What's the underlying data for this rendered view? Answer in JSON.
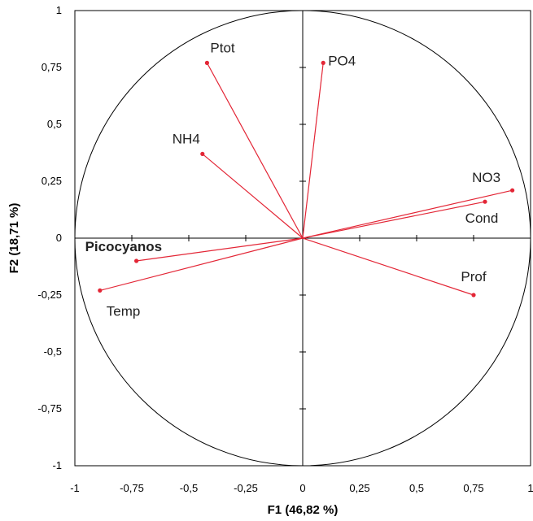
{
  "chart_data": {
    "type": "scatter",
    "subtype": "correlation-circle",
    "title": "",
    "xlabel": "F1 (46,82 %)",
    "ylabel": "F2 (18,71 %)",
    "xlim": [
      -1,
      1
    ],
    "ylim": [
      -1,
      1
    ],
    "x_ticks": [
      "-1",
      "-0,75",
      "-0,5",
      "-0,25",
      "0",
      "0,25",
      "0,5",
      "0,75",
      "1"
    ],
    "y_ticks": [
      "-1",
      "-0,75",
      "-0,5",
      "-0,25",
      "0",
      "0,25",
      "0,5",
      "0,75",
      "1"
    ],
    "grid": false,
    "unit_circle": true,
    "vector_color": "#e32636",
    "highlight_color": "#e32636",
    "variables": [
      {
        "name": "Ptot",
        "x": -0.42,
        "y": 0.77,
        "highlight": false
      },
      {
        "name": "PO4",
        "x": 0.09,
        "y": 0.77,
        "highlight": false
      },
      {
        "name": "NH4",
        "x": -0.44,
        "y": 0.37,
        "highlight": false
      },
      {
        "name": "NO3",
        "x": 0.92,
        "y": 0.21,
        "highlight": false
      },
      {
        "name": "Cond",
        "x": 0.8,
        "y": 0.16,
        "highlight": false
      },
      {
        "name": "Prof",
        "x": 0.75,
        "y": -0.25,
        "highlight": false
      },
      {
        "name": "Picocyanos",
        "x": -0.73,
        "y": -0.1,
        "highlight": true
      },
      {
        "name": "Temp",
        "x": -0.89,
        "y": -0.23,
        "highlight": false
      }
    ]
  }
}
